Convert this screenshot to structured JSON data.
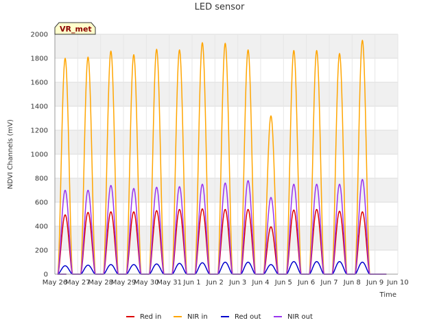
{
  "chart_data": {
    "type": "line",
    "title": "LED sensor",
    "xlabel": "Time",
    "ylabel": "NDVI Channels (mV)",
    "ylim": [
      0,
      2000
    ],
    "yticks": [
      0,
      200,
      400,
      600,
      800,
      1000,
      1200,
      1400,
      1600,
      1800,
      2000
    ],
    "xlim": [
      0,
      15
    ],
    "xticks": [
      {
        "x": 0,
        "label": "May 26"
      },
      {
        "x": 1,
        "label": "May 27"
      },
      {
        "x": 2,
        "label": "May 28"
      },
      {
        "x": 3,
        "label": "May 29"
      },
      {
        "x": 4,
        "label": "May 30"
      },
      {
        "x": 5,
        "label": "May 31"
      },
      {
        "x": 6,
        "label": "Jun 1"
      },
      {
        "x": 7,
        "label": "Jun 2"
      },
      {
        "x": 8,
        "label": "Jun 3"
      },
      {
        "x": 9,
        "label": "Jun 4"
      },
      {
        "x": 10,
        "label": "Jun 5"
      },
      {
        "x": 11,
        "label": "Jun 6"
      },
      {
        "x": 12,
        "label": "Jun 7"
      },
      {
        "x": 13,
        "label": "Jun 8"
      },
      {
        "x": 14,
        "label": "Jun 9"
      },
      {
        "x": 15,
        "label": "Jun 10"
      }
    ],
    "day_peak_x": [
      0.45,
      1.45,
      2.45,
      3.45,
      4.45,
      5.45,
      6.45,
      7.45,
      8.45,
      9.45,
      10.45,
      11.45,
      12.45,
      13.45
    ],
    "day_half_width": 0.32,
    "annotation": "VR_met",
    "legend_position": "bottom",
    "series": [
      {
        "name": "Red in",
        "color": "#dd0000",
        "peaks": [
          495,
          515,
          520,
          520,
          530,
          540,
          545,
          540,
          540,
          395,
          535,
          540,
          525,
          520
        ]
      },
      {
        "name": "NIR in",
        "color": "#ffa500",
        "peaks": [
          1800,
          1810,
          1860,
          1830,
          1875,
          1870,
          1930,
          1925,
          1870,
          1320,
          1865,
          1865,
          1840,
          1950
        ]
      },
      {
        "name": "Red out",
        "color": "#0000cc",
        "peaks": [
          70,
          75,
          80,
          80,
          85,
          90,
          95,
          100,
          100,
          80,
          105,
          105,
          105,
          100
        ]
      },
      {
        "name": "NIR out",
        "color": "#9933ee",
        "peaks": [
          700,
          700,
          740,
          715,
          725,
          730,
          750,
          760,
          780,
          640,
          750,
          750,
          750,
          790
        ]
      }
    ]
  }
}
